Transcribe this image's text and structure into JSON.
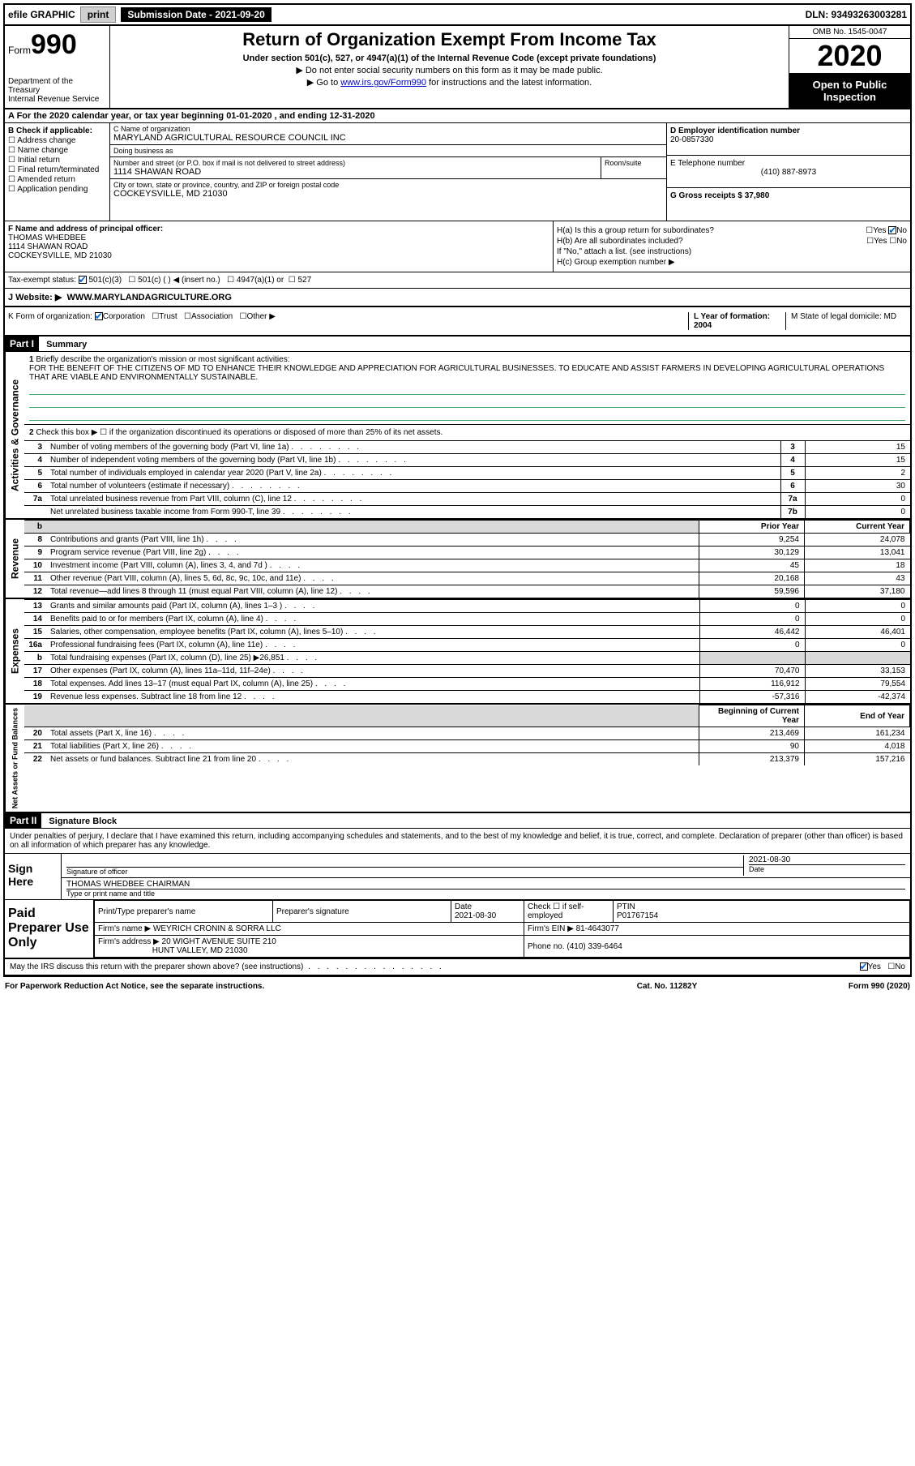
{
  "top": {
    "efile": "efile GRAPHIC",
    "print": "print",
    "sub_label": "Submission Date - 2021-09-20",
    "dln": "DLN: 93493263003281"
  },
  "header": {
    "form_word": "Form",
    "form_num": "990",
    "title": "Return of Organization Exempt From Income Tax",
    "subtitle": "Under section 501(c), 527, or 4947(a)(1) of the Internal Revenue Code (except private foundations)",
    "line1": "▶ Do not enter social security numbers on this form as it may be made public.",
    "line2_pre": "▶ Go to ",
    "line2_link": "www.irs.gov/Form990",
    "line2_post": " for instructions and the latest information.",
    "dept": "Department of the Treasury",
    "irs": "Internal Revenue Service",
    "omb": "OMB No. 1545-0047",
    "year": "2020",
    "inspect1": "Open to Public",
    "inspect2": "Inspection"
  },
  "taxyear": "A For the 2020 calendar year, or tax year beginning 01-01-2020    , and ending 12-31-2020",
  "checkif": {
    "label": "B Check if applicable:",
    "items": [
      "Address change",
      "Name change",
      "Initial return",
      "Final return/terminated",
      "Amended return",
      "Application pending"
    ]
  },
  "org": {
    "name_label": "C Name of organization",
    "name": "MARYLAND AGRICULTURAL RESOURCE COUNCIL INC",
    "dba_label": "Doing business as",
    "dba": "",
    "street_label": "Number and street (or P.O. box if mail is not delivered to street address)",
    "street": "1114 SHAWAN ROAD",
    "room_label": "Room/suite",
    "room": "",
    "city_label": "City or town, state or province, country, and ZIP or foreign postal code",
    "city": "COCKEYSVILLE, MD  21030"
  },
  "ein": {
    "d_label": "D Employer identification number",
    "d_val": "20-0857330",
    "e_label": "E Telephone number",
    "e_val": "(410) 887-8973",
    "g_label": "G Gross receipts $ 37,980"
  },
  "officer": {
    "f_label": "F  Name and address of principal officer:",
    "name": "THOMAS WHEDBEE",
    "addr1": "1114 SHAWAN ROAD",
    "addr2": "COCKEYSVILLE, MD  21030",
    "ha": "H(a)  Is this a group return for subordinates?",
    "hb": "H(b)  Are all subordinates included?",
    "hb_note": "If \"No,\" attach a list. (see instructions)",
    "hc": "H(c)  Group exemption number ▶",
    "yes": "Yes",
    "no": "No"
  },
  "status": {
    "label": "Tax-exempt status:",
    "c3": "501(c)(3)",
    "c": "501(c) (  ) ◀ (insert no.)",
    "a1": "4947(a)(1) or",
    "s527": "527"
  },
  "website": {
    "label": "J  Website: ▶",
    "val": "WWW.MARYLANDAGRICULTURE.ORG"
  },
  "kform": {
    "k": "K Form of organization:",
    "corp": "Corporation",
    "trust": "Trust",
    "assoc": "Association",
    "other": "Other ▶",
    "l": "L Year of formation: 2004",
    "m": "M State of legal domicile: MD"
  },
  "part1": {
    "header": "Part I",
    "title": "Summary",
    "q1": "Briefly describe the organization's mission or most significant activities:",
    "mission": "FOR THE BENEFIT OF THE CITIZENS OF MD TO ENHANCE THEIR KNOWLEDGE AND APPRECIATION FOR AGRICULTURAL BUSINESSES. TO EDUCATE AND ASSIST FARMERS IN DEVELOPING AGRICULTURAL OPERATIONS THAT ARE VIABLE AND ENVIRONMENTALLY SUSTAINABLE.",
    "q2": "Check this box ▶ ☐  if the organization discontinued its operations or disposed of more than 25% of its net assets.",
    "side_ag": "Activities & Governance",
    "side_rev": "Revenue",
    "side_exp": "Expenses",
    "side_na": "Net Assets or Fund Balances",
    "rows_ag": [
      {
        "n": "3",
        "d": "Number of voting members of the governing body (Part VI, line 1a)",
        "box": "3",
        "v": "15"
      },
      {
        "n": "4",
        "d": "Number of independent voting members of the governing body (Part VI, line 1b)",
        "box": "4",
        "v": "15"
      },
      {
        "n": "5",
        "d": "Total number of individuals employed in calendar year 2020 (Part V, line 2a)",
        "box": "5",
        "v": "2"
      },
      {
        "n": "6",
        "d": "Total number of volunteers (estimate if necessary)",
        "box": "6",
        "v": "30"
      },
      {
        "n": "7a",
        "d": "Total unrelated business revenue from Part VIII, column (C), line 12",
        "box": "7a",
        "v": "0"
      },
      {
        "n": "",
        "d": "Net unrelated business taxable income from Form 990-T, line 39",
        "box": "7b",
        "v": "0"
      }
    ],
    "py_header": "Prior Year",
    "cy_header": "Current Year",
    "rows_rev": [
      {
        "n": "8",
        "d": "Contributions and grants (Part VIII, line 1h)",
        "py": "9,254",
        "cy": "24,078"
      },
      {
        "n": "9",
        "d": "Program service revenue (Part VIII, line 2g)",
        "py": "30,129",
        "cy": "13,041"
      },
      {
        "n": "10",
        "d": "Investment income (Part VIII, column (A), lines 3, 4, and 7d )",
        "py": "45",
        "cy": "18"
      },
      {
        "n": "11",
        "d": "Other revenue (Part VIII, column (A), lines 5, 6d, 8c, 9c, 10c, and 11e)",
        "py": "20,168",
        "cy": "43"
      },
      {
        "n": "12",
        "d": "Total revenue—add lines 8 through 11 (must equal Part VIII, column (A), line 12)",
        "py": "59,596",
        "cy": "37,180"
      }
    ],
    "rows_exp": [
      {
        "n": "13",
        "d": "Grants and similar amounts paid (Part IX, column (A), lines 1–3 )",
        "py": "0",
        "cy": "0"
      },
      {
        "n": "14",
        "d": "Benefits paid to or for members (Part IX, column (A), line 4)",
        "py": "0",
        "cy": "0"
      },
      {
        "n": "15",
        "d": "Salaries, other compensation, employee benefits (Part IX, column (A), lines 5–10)",
        "py": "46,442",
        "cy": "46,401"
      },
      {
        "n": "16a",
        "d": "Professional fundraising fees (Part IX, column (A), line 11e)",
        "py": "0",
        "cy": "0"
      },
      {
        "n": "b",
        "d": "Total fundraising expenses (Part IX, column (D), line 25) ▶26,851",
        "py": "",
        "cy": "",
        "shaded": true
      },
      {
        "n": "17",
        "d": "Other expenses (Part IX, column (A), lines 11a–11d, 11f–24e)",
        "py": "70,470",
        "cy": "33,153"
      },
      {
        "n": "18",
        "d": "Total expenses. Add lines 13–17 (must equal Part IX, column (A), line 25)",
        "py": "116,912",
        "cy": "79,554"
      },
      {
        "n": "19",
        "d": "Revenue less expenses. Subtract line 18 from line 12",
        "py": "-57,316",
        "cy": "-42,374"
      }
    ],
    "boy_header": "Beginning of Current Year",
    "eoy_header": "End of Year",
    "rows_na": [
      {
        "n": "20",
        "d": "Total assets (Part X, line 16)",
        "py": "213,469",
        "cy": "161,234"
      },
      {
        "n": "21",
        "d": "Total liabilities (Part X, line 26)",
        "py": "90",
        "cy": "4,018"
      },
      {
        "n": "22",
        "d": "Net assets or fund balances. Subtract line 21 from line 20",
        "py": "213,379",
        "cy": "157,216"
      }
    ]
  },
  "part2": {
    "header": "Part II",
    "title": "Signature Block",
    "penalty": "Under penalties of perjury, I declare that I have examined this return, including accompanying schedules and statements, and to the best of my knowledge and belief, it is true, correct, and complete. Declaration of preparer (other than officer) is based on all information of which preparer has any knowledge.",
    "sign_here": "Sign Here",
    "sig_officer": "Signature of officer",
    "sig_date": "2021-08-30",
    "date_label": "Date",
    "typed": "THOMAS WHEDBEE  CHAIRMAN",
    "typed_label": "Type or print name and title",
    "paid": "Paid Preparer Use Only",
    "prep_name_label": "Print/Type preparer's name",
    "prep_sig_label": "Preparer's signature",
    "prep_date_label": "Date",
    "prep_date": "2021-08-30",
    "check_self": "Check ☐ if self-employed",
    "ptin_label": "PTIN",
    "ptin": "P01767154",
    "firm_name_label": "Firm's name    ▶",
    "firm_name": "WEYRICH CRONIN & SORRA LLC",
    "firm_ein_label": "Firm's EIN ▶",
    "firm_ein": "81-4643077",
    "firm_addr_label": "Firm's address ▶",
    "firm_addr1": "20 WIGHT AVENUE SUITE 210",
    "firm_addr2": "HUNT VALLEY, MD  21030",
    "phone_label": "Phone no.",
    "phone": "(410) 339-6464",
    "discuss": "May the IRS discuss this return with the preparer shown above? (see instructions)",
    "yes": "Yes",
    "no": "No"
  },
  "footer": {
    "left": "For Paperwork Reduction Act Notice, see the separate instructions.",
    "mid": "Cat. No. 11282Y",
    "right": "Form 990 (2020)"
  }
}
